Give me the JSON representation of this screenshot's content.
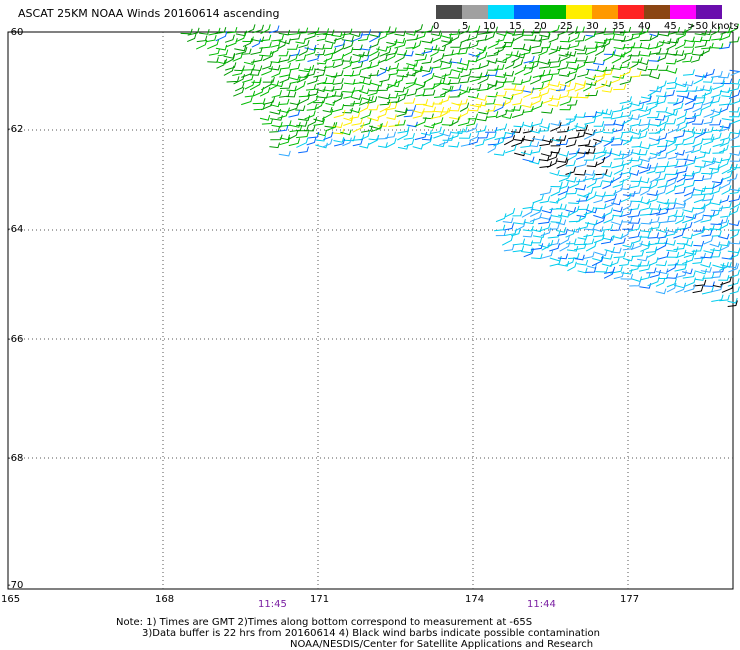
{
  "title": "ASCAT 25KM NOAA Winds 20160614 ascending",
  "colorbar": {
    "labels": [
      "0",
      "5",
      "10",
      "15",
      "20",
      "25",
      "30",
      "35",
      "40",
      "45",
      ">50 knots"
    ],
    "colors": [
      "#4a4a4a",
      "#a0a0a0",
      "#00ddff",
      "#0066ff",
      "#00bb00",
      "#ffee00",
      "#ff9900",
      "#ff2222",
      "#8b4513",
      "#ff00ff",
      "#6a0dad"
    ]
  },
  "lat_labels": [
    "-60",
    "-62",
    "-64",
    "-66",
    "-68",
    "-70"
  ],
  "lon_labels": [
    "165",
    "168",
    "171",
    "174",
    "177"
  ],
  "time_labels": [
    "11:45",
    "11:44"
  ],
  "notes": [
    "Note: 1) Times are GMT 2)Times along bottom correspond to measurement at -65S",
    "3)Data buffer is 22 hrs from 20160614 4) Black wind barbs indicate possible contamination",
    "NOAA/NESDIS/Center for Satellite Applications and Research"
  ],
  "swath": {
    "wind_barbs": "dense field of wind barbs across upper right of map",
    "dominant_colors": [
      "#00bb00",
      "#ffee00",
      "#0066ff",
      "#00ddff",
      "#000000"
    ]
  }
}
